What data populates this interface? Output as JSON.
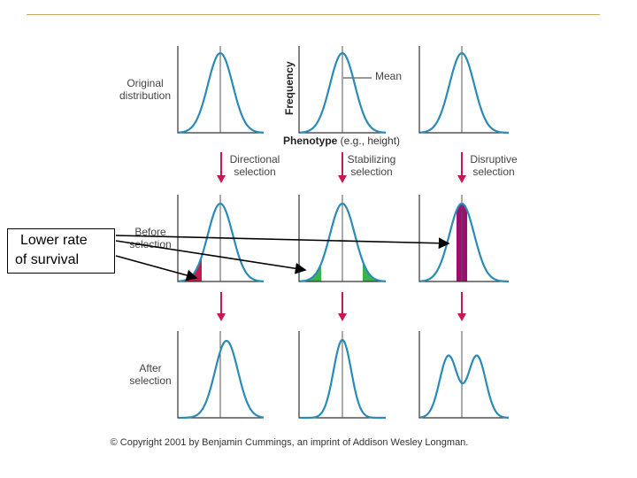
{
  "row_labels": {
    "original": [
      "Original",
      "distribution"
    ],
    "before": [
      "Before",
      "selection"
    ],
    "after": [
      "After",
      "selection"
    ]
  },
  "axes": {
    "y_label": "Frequency",
    "x_label_bold": "Phenotype",
    "x_label_rest": " (e.g., height)",
    "mean_label": "Mean"
  },
  "columns": [
    {
      "id": "directional",
      "label": [
        "Directional",
        "selection"
      ]
    },
    {
      "id": "stabilizing",
      "label": [
        "Stabilizing",
        "selection"
      ]
    },
    {
      "id": "disruptive",
      "label": [
        "Disruptive",
        "selection"
      ]
    }
  ],
  "callout": {
    "line1": "Lower rate",
    "line2": "of survival"
  },
  "copyright": "© Copyright 2001 by Benjamin Cummings, an imprint of Addison Wesley Longman.",
  "colors": {
    "curve": "#2a8ab8",
    "arrow": "#c8194f",
    "directional_fill": "#c8194f",
    "stabilizing_fill": "#3bb34a",
    "disruptive_fill": "#9c0f6e",
    "axis": "#333333",
    "top_rule": "#c8a860"
  }
}
